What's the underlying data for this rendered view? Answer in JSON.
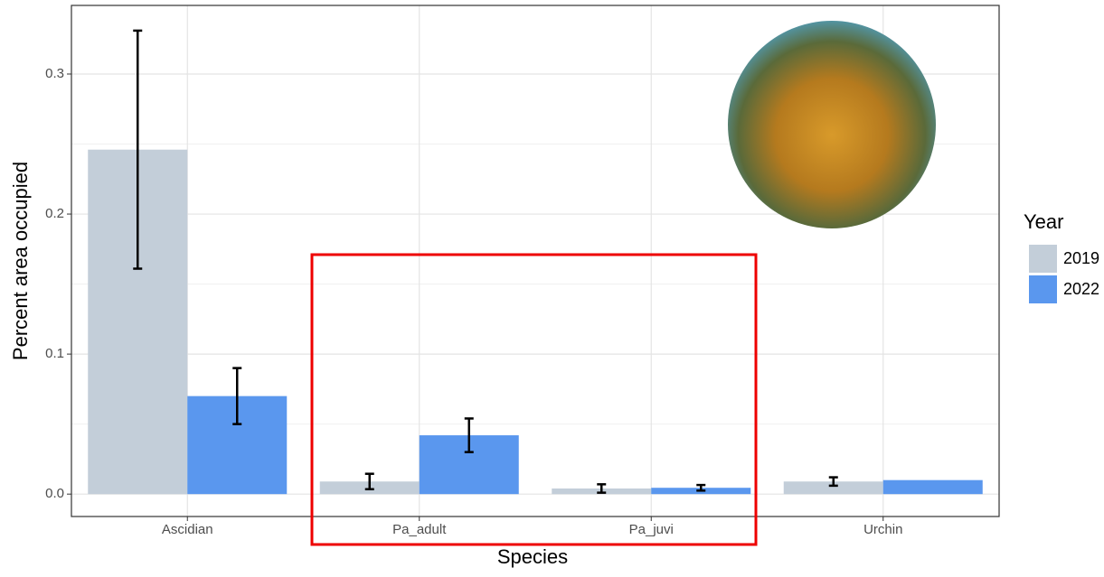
{
  "chart_data": {
    "type": "bar",
    "x_label": "Species",
    "y_label": "Percent area occupied",
    "legend_title": "Year",
    "categories": [
      "Ascidian",
      "Pa_adult",
      "Pa_juvi",
      "Urchin"
    ],
    "series": [
      {
        "name": "2019",
        "color": "#c3ced9",
        "values": [
          0.246,
          0.009,
          0.004,
          0.009
        ],
        "errors": [
          0.085,
          0.0055,
          0.003,
          0.003
        ]
      },
      {
        "name": "2022",
        "color": "#5a97ee",
        "values": [
          0.07,
          0.042,
          0.0045,
          0.01
        ],
        "errors": [
          0.02,
          0.012,
          0.002,
          null
        ]
      }
    ],
    "ylim": [
      -0.016,
      0.349
    ],
    "yticks": [
      {
        "value": 0,
        "label": "0.0"
      },
      0.1,
      0.2,
      0.3
    ],
    "grid": true,
    "legend_position": "right"
  }
}
